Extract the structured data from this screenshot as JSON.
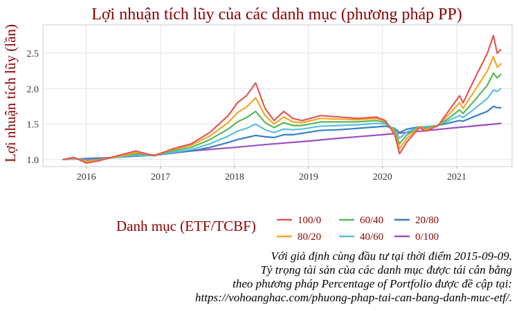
{
  "chart_data": {
    "type": "line",
    "title": "Lợi nhuận tích lũy của các danh mục (phương pháp PP)",
    "xlabel": "",
    "ylabel": "Lợi nhuận tích lũy (lần)",
    "x_ticks": [
      "2016",
      "2017",
      "2018",
      "2019",
      "2020",
      "2021"
    ],
    "y_ticks": [
      "1.0",
      "1.5",
      "2.0",
      "2.5"
    ],
    "xlim": [
      "2015-06-01",
      "2021-10-01"
    ],
    "ylim": [
      0.9,
      2.9
    ],
    "grid": true,
    "legend_position": "bottom",
    "legend_title": "Danh mục (ETF/TCBF)",
    "series": [
      {
        "name": "100/0",
        "color": "#E15759",
        "points": [
          [
            "2015-09-09",
            1.0
          ],
          [
            "2015-11-01",
            1.03
          ],
          [
            "2016-01-01",
            0.95
          ],
          [
            "2016-03-01",
            0.98
          ],
          [
            "2016-06-01",
            1.05
          ],
          [
            "2016-09-01",
            1.12
          ],
          [
            "2016-12-01",
            1.05
          ],
          [
            "2017-03-01",
            1.15
          ],
          [
            "2017-06-01",
            1.22
          ],
          [
            "2017-09-01",
            1.38
          ],
          [
            "2017-12-01",
            1.62
          ],
          [
            "2018-01-15",
            1.8
          ],
          [
            "2018-03-01",
            1.9
          ],
          [
            "2018-04-15",
            2.08
          ],
          [
            "2018-06-01",
            1.72
          ],
          [
            "2018-07-15",
            1.55
          ],
          [
            "2018-09-01",
            1.68
          ],
          [
            "2018-10-15",
            1.58
          ],
          [
            "2018-12-01",
            1.55
          ],
          [
            "2019-03-01",
            1.62
          ],
          [
            "2019-06-01",
            1.6
          ],
          [
            "2019-09-01",
            1.58
          ],
          [
            "2019-12-01",
            1.6
          ],
          [
            "2020-01-15",
            1.55
          ],
          [
            "2020-03-01",
            1.35
          ],
          [
            "2020-03-25",
            1.08
          ],
          [
            "2020-05-01",
            1.25
          ],
          [
            "2020-07-01",
            1.45
          ],
          [
            "2020-08-01",
            1.4
          ],
          [
            "2020-10-01",
            1.48
          ],
          [
            "2020-12-01",
            1.72
          ],
          [
            "2021-01-15",
            1.9
          ],
          [
            "2021-02-01",
            1.8
          ],
          [
            "2021-04-01",
            2.15
          ],
          [
            "2021-06-01",
            2.5
          ],
          [
            "2021-07-01",
            2.75
          ],
          [
            "2021-07-20",
            2.5
          ],
          [
            "2021-08-06",
            2.55
          ]
        ]
      },
      {
        "name": "80/20",
        "color": "#F5A623",
        "points": [
          [
            "2015-09-09",
            1.0
          ],
          [
            "2015-11-01",
            1.02
          ],
          [
            "2016-01-01",
            0.97
          ],
          [
            "2016-03-01",
            0.99
          ],
          [
            "2016-06-01",
            1.04
          ],
          [
            "2016-09-01",
            1.1
          ],
          [
            "2016-12-01",
            1.06
          ],
          [
            "2017-03-01",
            1.14
          ],
          [
            "2017-06-01",
            1.2
          ],
          [
            "2017-09-01",
            1.33
          ],
          [
            "2017-12-01",
            1.52
          ],
          [
            "2018-01-15",
            1.66
          ],
          [
            "2018-03-01",
            1.74
          ],
          [
            "2018-04-15",
            1.87
          ],
          [
            "2018-06-01",
            1.62
          ],
          [
            "2018-07-15",
            1.5
          ],
          [
            "2018-09-01",
            1.6
          ],
          [
            "2018-10-15",
            1.53
          ],
          [
            "2018-12-01",
            1.52
          ],
          [
            "2019-03-01",
            1.58
          ],
          [
            "2019-06-01",
            1.57
          ],
          [
            "2019-09-01",
            1.56
          ],
          [
            "2019-12-01",
            1.58
          ],
          [
            "2020-01-15",
            1.54
          ],
          [
            "2020-03-01",
            1.38
          ],
          [
            "2020-03-25",
            1.15
          ],
          [
            "2020-05-01",
            1.3
          ],
          [
            "2020-07-01",
            1.46
          ],
          [
            "2020-08-01",
            1.42
          ],
          [
            "2020-10-01",
            1.48
          ],
          [
            "2020-12-01",
            1.66
          ],
          [
            "2021-01-15",
            1.8
          ],
          [
            "2021-02-01",
            1.72
          ],
          [
            "2021-04-01",
            1.98
          ],
          [
            "2021-06-01",
            2.25
          ],
          [
            "2021-07-01",
            2.45
          ],
          [
            "2021-07-20",
            2.3
          ],
          [
            "2021-08-06",
            2.35
          ]
        ]
      },
      {
        "name": "60/40",
        "color": "#59B85B",
        "points": [
          [
            "2015-09-09",
            1.0
          ],
          [
            "2015-11-01",
            1.02
          ],
          [
            "2016-01-01",
            0.98
          ],
          [
            "2016-03-01",
            1.0
          ],
          [
            "2016-06-01",
            1.04
          ],
          [
            "2016-09-01",
            1.08
          ],
          [
            "2016-12-01",
            1.06
          ],
          [
            "2017-03-01",
            1.12
          ],
          [
            "2017-06-01",
            1.17
          ],
          [
            "2017-09-01",
            1.28
          ],
          [
            "2017-12-01",
            1.43
          ],
          [
            "2018-01-15",
            1.53
          ],
          [
            "2018-03-01",
            1.59
          ],
          [
            "2018-04-15",
            1.68
          ],
          [
            "2018-06-01",
            1.52
          ],
          [
            "2018-07-15",
            1.45
          ],
          [
            "2018-09-01",
            1.52
          ],
          [
            "2018-10-15",
            1.48
          ],
          [
            "2018-12-01",
            1.48
          ],
          [
            "2019-03-01",
            1.53
          ],
          [
            "2019-06-01",
            1.53
          ],
          [
            "2019-09-01",
            1.53
          ],
          [
            "2019-12-01",
            1.55
          ],
          [
            "2020-01-15",
            1.52
          ],
          [
            "2020-03-01",
            1.41
          ],
          [
            "2020-03-25",
            1.22
          ],
          [
            "2020-05-01",
            1.35
          ],
          [
            "2020-07-01",
            1.46
          ],
          [
            "2020-08-01",
            1.44
          ],
          [
            "2020-10-01",
            1.48
          ],
          [
            "2020-12-01",
            1.6
          ],
          [
            "2021-01-15",
            1.7
          ],
          [
            "2021-02-01",
            1.65
          ],
          [
            "2021-04-01",
            1.84
          ],
          [
            "2021-06-01",
            2.05
          ],
          [
            "2021-07-01",
            2.22
          ],
          [
            "2021-07-20",
            2.15
          ],
          [
            "2021-08-06",
            2.2
          ]
        ]
      },
      {
        "name": "40/60",
        "color": "#5BC0DE",
        "points": [
          [
            "2015-09-09",
            1.0
          ],
          [
            "2015-11-01",
            1.01
          ],
          [
            "2016-01-01",
            0.99
          ],
          [
            "2016-03-01",
            1.0
          ],
          [
            "2016-06-01",
            1.03
          ],
          [
            "2016-09-01",
            1.06
          ],
          [
            "2016-12-01",
            1.06
          ],
          [
            "2017-03-01",
            1.1
          ],
          [
            "2017-06-01",
            1.14
          ],
          [
            "2017-09-01",
            1.22
          ],
          [
            "2017-12-01",
            1.33
          ],
          [
            "2018-01-15",
            1.4
          ],
          [
            "2018-03-01",
            1.44
          ],
          [
            "2018-04-15",
            1.5
          ],
          [
            "2018-06-01",
            1.42
          ],
          [
            "2018-07-15",
            1.38
          ],
          [
            "2018-09-01",
            1.43
          ],
          [
            "2018-10-15",
            1.42
          ],
          [
            "2018-12-01",
            1.43
          ],
          [
            "2019-03-01",
            1.47
          ],
          [
            "2019-06-01",
            1.48
          ],
          [
            "2019-09-01",
            1.49
          ],
          [
            "2019-12-01",
            1.51
          ],
          [
            "2020-01-15",
            1.5
          ],
          [
            "2020-03-01",
            1.43
          ],
          [
            "2020-03-25",
            1.3
          ],
          [
            "2020-05-01",
            1.39
          ],
          [
            "2020-07-01",
            1.46
          ],
          [
            "2020-08-01",
            1.45
          ],
          [
            "2020-10-01",
            1.48
          ],
          [
            "2020-12-01",
            1.56
          ],
          [
            "2021-01-15",
            1.62
          ],
          [
            "2021-02-01",
            1.59
          ],
          [
            "2021-04-01",
            1.72
          ],
          [
            "2021-06-01",
            1.86
          ],
          [
            "2021-07-01",
            1.98
          ],
          [
            "2021-07-20",
            1.96
          ],
          [
            "2021-08-06",
            2.0
          ]
        ]
      },
      {
        "name": "20/80",
        "color": "#3A7EC2",
        "points": [
          [
            "2015-09-09",
            1.0
          ],
          [
            "2015-11-01",
            1.01
          ],
          [
            "2016-01-01",
            1.0
          ],
          [
            "2016-03-01",
            1.01
          ],
          [
            "2016-06-01",
            1.03
          ],
          [
            "2016-09-01",
            1.05
          ],
          [
            "2016-12-01",
            1.06
          ],
          [
            "2017-03-01",
            1.09
          ],
          [
            "2017-06-01",
            1.12
          ],
          [
            "2017-09-01",
            1.17
          ],
          [
            "2017-12-01",
            1.24
          ],
          [
            "2018-01-15",
            1.28
          ],
          [
            "2018-03-01",
            1.31
          ],
          [
            "2018-04-15",
            1.34
          ],
          [
            "2018-06-01",
            1.32
          ],
          [
            "2018-07-15",
            1.31
          ],
          [
            "2018-09-01",
            1.35
          ],
          [
            "2018-10-15",
            1.35
          ],
          [
            "2018-12-01",
            1.37
          ],
          [
            "2019-03-01",
            1.41
          ],
          [
            "2019-06-01",
            1.42
          ],
          [
            "2019-09-01",
            1.44
          ],
          [
            "2019-12-01",
            1.46
          ],
          [
            "2020-01-15",
            1.47
          ],
          [
            "2020-03-01",
            1.44
          ],
          [
            "2020-03-25",
            1.38
          ],
          [
            "2020-05-01",
            1.43
          ],
          [
            "2020-07-01",
            1.46
          ],
          [
            "2020-08-01",
            1.46
          ],
          [
            "2020-10-01",
            1.48
          ],
          [
            "2020-12-01",
            1.52
          ],
          [
            "2021-01-15",
            1.55
          ],
          [
            "2021-02-01",
            1.54
          ],
          [
            "2021-04-01",
            1.61
          ],
          [
            "2021-06-01",
            1.68
          ],
          [
            "2021-07-01",
            1.75
          ],
          [
            "2021-07-20",
            1.73
          ],
          [
            "2021-08-06",
            1.73
          ]
        ]
      },
      {
        "name": "0/100",
        "color": "#9B4FC4",
        "points": [
          [
            "2015-09-09",
            1.0
          ],
          [
            "2016-06-01",
            1.03
          ],
          [
            "2017-01-01",
            1.07
          ],
          [
            "2017-06-01",
            1.12
          ],
          [
            "2018-01-01",
            1.17
          ],
          [
            "2018-06-01",
            1.21
          ],
          [
            "2019-01-01",
            1.26
          ],
          [
            "2019-06-01",
            1.3
          ],
          [
            "2020-01-01",
            1.35
          ],
          [
            "2020-06-01",
            1.39
          ],
          [
            "2021-01-01",
            1.45
          ],
          [
            "2021-06-01",
            1.49
          ],
          [
            "2021-08-06",
            1.51
          ]
        ]
      }
    ]
  },
  "caption": [
    "Với giả định cùng đầu tư tại thời điểm 2015-09-09.",
    "Tỷ trọng tài sản của các danh mục được tái cân bằng",
    "theo phương pháp Percentage of Portfolio được đề cập tại:",
    "https://vohoanghac.com/phuong-phap-tai-can-bang-danh-muc-etf/."
  ]
}
